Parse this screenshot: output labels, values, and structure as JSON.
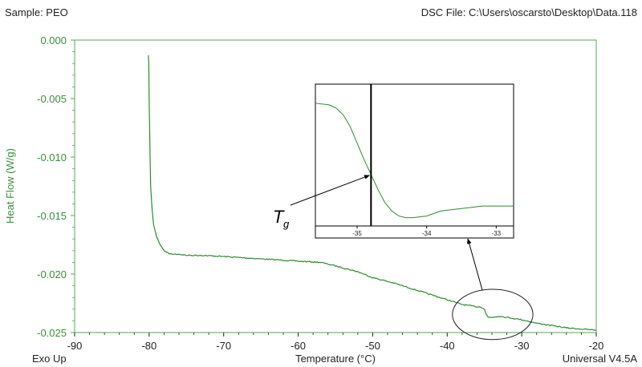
{
  "header": {
    "sample_label": "Sample: PEO",
    "file_label": "DSC File: C:\\Users\\oscarsto\\Desktop\\Data.118"
  },
  "footer": {
    "left_label": "Exo Up",
    "right_label": "Universal V4.5A"
  },
  "colors": {
    "curve": "#2e8b2e",
    "axis_text": "#3a8f3a",
    "axis_line": "#5aa55a",
    "text": "#222222",
    "inset_frame": "#000000"
  },
  "chart_data": [
    {
      "type": "line",
      "title": "",
      "xlabel": "Temperature (°C)",
      "ylabel": "Heat Flow (W/g)",
      "xlim": [
        -90,
        -20
      ],
      "ylim": [
        -0.025,
        0.0
      ],
      "xticks": [
        -90,
        -80,
        -70,
        -60,
        -50,
        -40,
        -30,
        -20
      ],
      "yticks": [
        0.0,
        -0.005,
        -0.01,
        -0.015,
        -0.02,
        -0.025
      ],
      "ytick_labels": [
        "0.000",
        "-0.005",
        "-0.010",
        "-0.015",
        "-0.020",
        "-0.025"
      ],
      "grid": false,
      "series": [
        {
          "x": [
            -80.1,
            -80.05,
            -80.0,
            -79.9,
            -79.8,
            -79.6,
            -79.4,
            -79.0,
            -78.6,
            -78.2,
            -78.0,
            -77.5,
            -77.0,
            -76.0,
            -75.0,
            -73.0,
            -70.0,
            -65.0,
            -60.0,
            -57.0,
            -55.0,
            -52.0,
            -50.0,
            -47.0,
            -45.0,
            -42.0,
            -40.0,
            -38.0,
            -36.0,
            -35.5,
            -35.0,
            -34.8,
            -34.5,
            -34.0,
            -33.0,
            -32.0,
            -31.0,
            -30.0,
            -28.0,
            -26.0,
            -24.0,
            -22.0,
            -20.0
          ],
          "y": [
            -0.0013,
            -0.002,
            -0.005,
            -0.009,
            -0.0125,
            -0.0145,
            -0.0158,
            -0.0168,
            -0.0174,
            -0.0178,
            -0.018,
            -0.0182,
            -0.0183,
            -0.0183,
            -0.0184,
            -0.0184,
            -0.0185,
            -0.0187,
            -0.0189,
            -0.019,
            -0.0193,
            -0.0198,
            -0.0203,
            -0.0208,
            -0.0212,
            -0.0218,
            -0.0222,
            -0.0226,
            -0.0228,
            -0.0228,
            -0.023,
            -0.0234,
            -0.0237,
            -0.0237,
            -0.0236,
            -0.0237,
            -0.0238,
            -0.0239,
            -0.0242,
            -0.0244,
            -0.0246,
            -0.0247,
            -0.0248
          ]
        }
      ],
      "annotation": {
        "region_x": [
          -39.3,
          -28.5
        ],
        "region_y": [
          -0.0256,
          -0.0213
        ]
      }
    },
    {
      "type": "line",
      "xlim": [
        -35.6,
        -32.75
      ],
      "ylim": [
        -0.012,
        -0.00345
      ],
      "xticks": [
        -35,
        -34,
        -33
      ],
      "tg_marker_x": -34.8,
      "series": [
        {
          "x": [
            -35.6,
            -35.4,
            -35.3,
            -35.2,
            -35.1,
            -35.0,
            -34.9,
            -34.8,
            -34.7,
            -34.6,
            -34.5,
            -34.4,
            -34.3,
            -34.2,
            -34.0,
            -33.8,
            -33.6,
            -33.4,
            -33.2,
            -33.0,
            -32.8,
            -32.75
          ],
          "y": [
            -0.0046,
            -0.0047,
            -0.0049,
            -0.0053,
            -0.006,
            -0.007,
            -0.008,
            -0.0089,
            -0.0098,
            -0.0106,
            -0.0111,
            -0.0114,
            -0.0115,
            -0.0115,
            -0.0114,
            -0.0111,
            -0.011,
            -0.0109,
            -0.0108,
            -0.0108,
            -0.0108,
            -0.0108
          ]
        }
      ],
      "annotation": {
        "label_main": "T",
        "label_sub": "g",
        "point": [
          -34.8,
          -0.0089
        ]
      }
    }
  ]
}
